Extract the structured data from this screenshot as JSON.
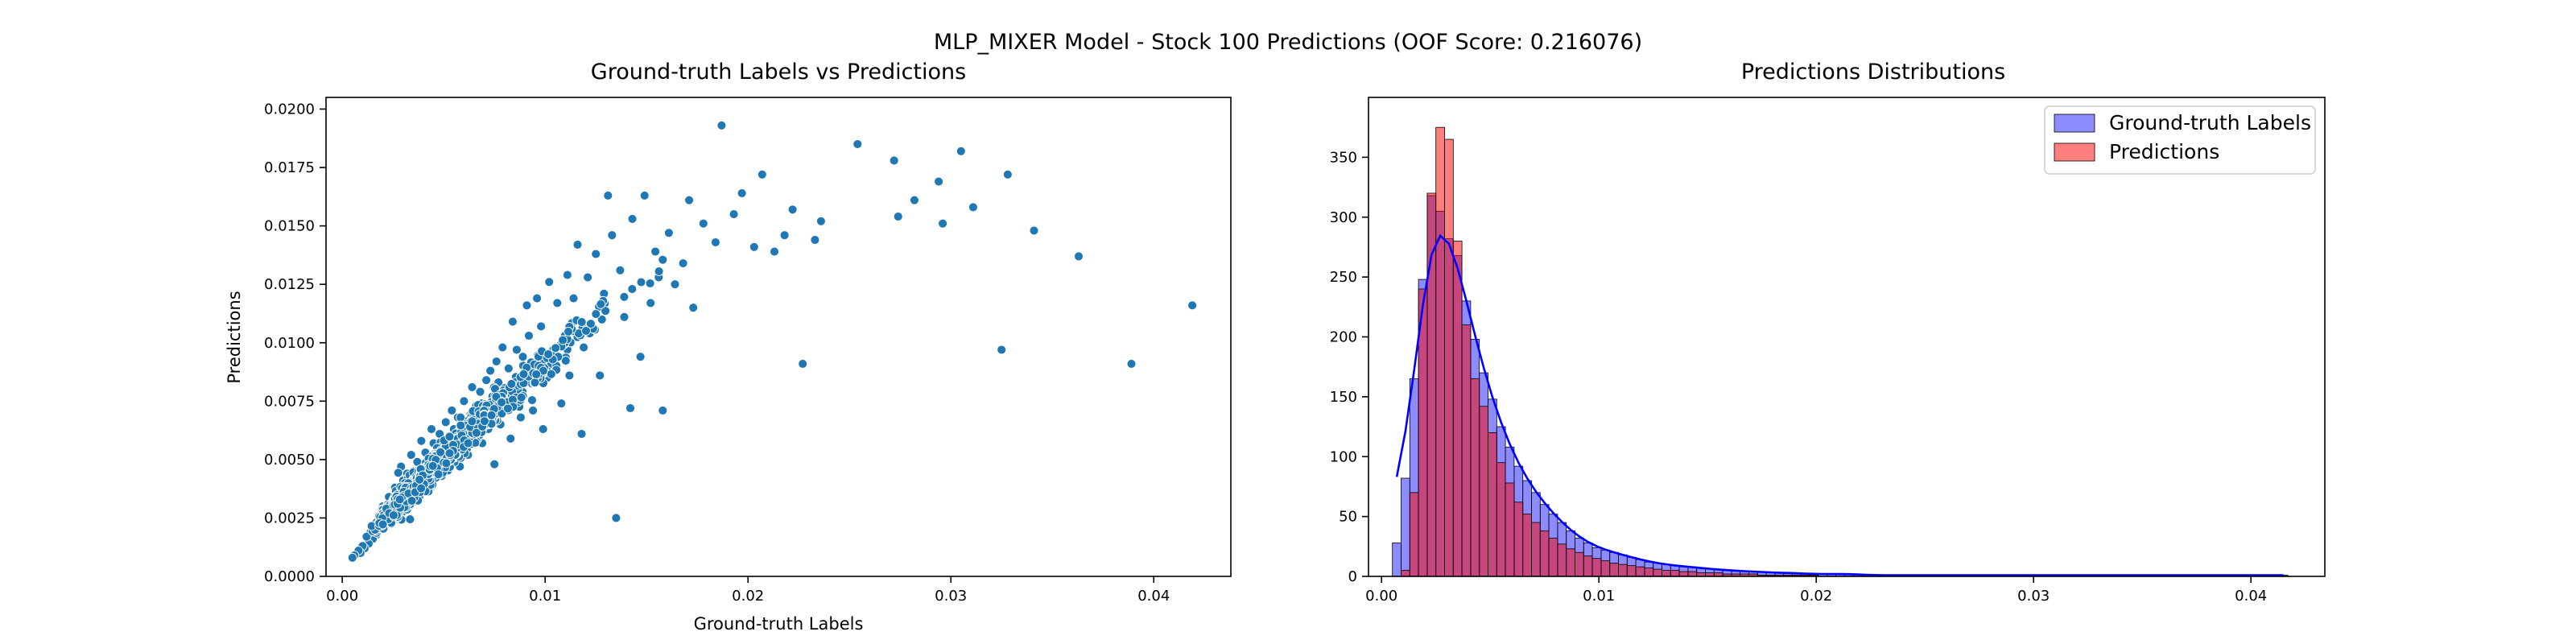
{
  "figure": {
    "suptitle": "MLP_MIXER Model - Stock 100 Predictions (OOF Score: 0.216076)"
  },
  "colors": {
    "scatter_face": "#1f77b4",
    "scatter_edge": "#ffffff",
    "truth_hist": "#0000ff",
    "pred_hist": "#ff0000",
    "kde_line": "#0000ff"
  },
  "chart_data": [
    {
      "type": "scatter",
      "title": "Ground-truth Labels vs Predictions",
      "xlabel": "Ground-truth Labels",
      "ylabel": "Predictions",
      "xlim": [
        -0.0008,
        0.0438
      ],
      "ylim": [
        0.0,
        0.0205
      ],
      "xticks": [
        0.0,
        0.01,
        0.02,
        0.03,
        0.04
      ],
      "xtick_labels": [
        "0.00",
        "0.01",
        "0.02",
        "0.03",
        "0.04"
      ],
      "yticks": [
        0.0,
        0.0025,
        0.005,
        0.0075,
        0.01,
        0.0125,
        0.015,
        0.0175,
        0.02
      ],
      "ytick_labels": [
        "0.0000",
        "0.0025",
        "0.0050",
        "0.0075",
        "0.0100",
        "0.0125",
        "0.0150",
        "0.0175",
        "0.0200"
      ],
      "grid": false,
      "points": [
        [
          0.0419,
          0.0116
        ],
        [
          0.0389,
          0.0091
        ],
        [
          0.0363,
          0.0137
        ],
        [
          0.0341,
          0.0148
        ],
        [
          0.0328,
          0.0172
        ],
        [
          0.0325,
          0.0097
        ],
        [
          0.0311,
          0.0158
        ],
        [
          0.0305,
          0.0182
        ],
        [
          0.0296,
          0.0151
        ],
        [
          0.0294,
          0.0169
        ],
        [
          0.0282,
          0.0161
        ],
        [
          0.0274,
          0.0154
        ],
        [
          0.0272,
          0.0178
        ],
        [
          0.0254,
          0.0185
        ],
        [
          0.0236,
          0.0152
        ],
        [
          0.0233,
          0.0144
        ],
        [
          0.0227,
          0.0091
        ],
        [
          0.0222,
          0.0157
        ],
        [
          0.0218,
          0.0146
        ],
        [
          0.0213,
          0.0139
        ],
        [
          0.0207,
          0.0172
        ],
        [
          0.0203,
          0.0141
        ],
        [
          0.0197,
          0.0164
        ],
        [
          0.0193,
          0.0155
        ],
        [
          0.0187,
          0.0193
        ],
        [
          0.0184,
          0.0143
        ],
        [
          0.0178,
          0.0151
        ],
        [
          0.0173,
          0.0115
        ],
        [
          0.0171,
          0.0161
        ],
        [
          0.0168,
          0.0134
        ],
        [
          0.0164,
          0.0125
        ],
        [
          0.0161,
          0.0147
        ],
        [
          0.0158,
          0.0071
        ],
        [
          0.0156,
          0.0128
        ],
        [
          0.0152,
          0.0117
        ],
        [
          0.0149,
          0.0163
        ],
        [
          0.0147,
          0.0094
        ],
        [
          0.0143,
          0.0153
        ],
        [
          0.0142,
          0.0072
        ],
        [
          0.0139,
          0.0111
        ],
        [
          0.0137,
          0.0131
        ],
        [
          0.0135,
          0.0025
        ],
        [
          0.0133,
          0.0146
        ],
        [
          0.0131,
          0.0163
        ],
        [
          0.0129,
          0.0121
        ],
        [
          0.0127,
          0.0086
        ],
        [
          0.0125,
          0.0138
        ],
        [
          0.0122,
          0.0104
        ],
        [
          0.0121,
          0.0128
        ],
        [
          0.0119,
          0.0098
        ],
        [
          0.0118,
          0.0061
        ],
        [
          0.0116,
          0.0142
        ],
        [
          0.0114,
          0.0119
        ],
        [
          0.0112,
          0.0086
        ],
        [
          0.0111,
          0.0129
        ],
        [
          0.0109,
          0.0102
        ],
        [
          0.0108,
          0.0074
        ],
        [
          0.0106,
          0.0117
        ],
        [
          0.0104,
          0.0097
        ],
        [
          0.0102,
          0.0126
        ],
        [
          0.0101,
          0.0085
        ],
        [
          0.0099,
          0.0063
        ],
        [
          0.0098,
          0.0107
        ],
        [
          0.0096,
          0.0119
        ],
        [
          0.0095,
          0.0087
        ],
        [
          0.0094,
          0.0071
        ],
        [
          0.0092,
          0.0103
        ],
        [
          0.0091,
          0.0116
        ],
        [
          0.0089,
          0.0094
        ],
        [
          0.0088,
          0.0068
        ],
        [
          0.0087,
          0.0081
        ],
        [
          0.0086,
          0.0097
        ],
        [
          0.0084,
          0.0109
        ],
        [
          0.0083,
          0.0059
        ],
        [
          0.0082,
          0.0089
        ],
        [
          0.0081,
          0.0075
        ],
        [
          0.0079,
          0.0098
        ],
        [
          0.0078,
          0.0065
        ],
        [
          0.0077,
          0.0083
        ],
        [
          0.0076,
          0.0092
        ],
        [
          0.0075,
          0.0048
        ],
        [
          0.0074,
          0.0077
        ],
        [
          0.0073,
          0.0088
        ],
        [
          0.0072,
          0.0063
        ],
        [
          0.0071,
          0.0084
        ],
        [
          0.007,
          0.0071
        ],
        [
          0.0069,
          0.0057
        ],
        [
          0.0068,
          0.0079
        ],
        [
          0.0067,
          0.0066
        ],
        [
          0.0066,
          0.0073
        ],
        [
          0.0065,
          0.0058
        ],
        [
          0.0064,
          0.0081
        ],
        [
          0.0063,
          0.0069
        ],
        [
          0.0062,
          0.0052
        ],
        [
          0.0061,
          0.0064
        ],
        [
          0.006,
          0.0075
        ],
        [
          0.0059,
          0.0061
        ],
        [
          0.0058,
          0.0047
        ],
        [
          0.0057,
          0.0068
        ],
        [
          0.0056,
          0.0055
        ],
        [
          0.0055,
          0.0063
        ],
        [
          0.0054,
          0.0071
        ],
        [
          0.0053,
          0.0049
        ],
        [
          0.0052,
          0.0058
        ],
        [
          0.0051,
          0.0066
        ],
        [
          0.005,
          0.0052
        ],
        [
          0.0049,
          0.0043
        ],
        [
          0.0048,
          0.0061
        ],
        [
          0.0047,
          0.0054
        ],
        [
          0.0046,
          0.0047
        ],
        [
          0.0045,
          0.0057
        ],
        [
          0.0044,
          0.0063
        ],
        [
          0.0043,
          0.0049
        ],
        [
          0.0042,
          0.0041
        ],
        [
          0.0041,
          0.0053
        ],
        [
          0.004,
          0.0046
        ],
        [
          0.0039,
          0.0058
        ],
        [
          0.0038,
          0.0042
        ],
        [
          0.0037,
          0.0049
        ],
        [
          0.0036,
          0.0036
        ],
        [
          0.0035,
          0.0045
        ],
        [
          0.0034,
          0.0052
        ],
        [
          0.0033,
          0.0039
        ],
        [
          0.0032,
          0.0044
        ],
        [
          0.0031,
          0.0033
        ],
        [
          0.003,
          0.0041
        ],
        [
          0.0029,
          0.0047
        ],
        [
          0.0028,
          0.0035
        ],
        [
          0.0027,
          0.0029
        ],
        [
          0.0026,
          0.0038
        ],
        [
          0.0025,
          0.0031
        ],
        [
          0.0024,
          0.0026
        ],
        [
          0.0023,
          0.0034
        ],
        [
          0.0022,
          0.0028
        ],
        [
          0.0021,
          0.0023
        ],
        [
          0.002,
          0.003
        ],
        [
          0.0019,
          0.0021
        ],
        [
          0.0018,
          0.0025
        ],
        [
          0.0017,
          0.0018
        ],
        [
          0.0016,
          0.0022
        ],
        [
          0.0015,
          0.0016
        ],
        [
          0.0014,
          0.0019
        ],
        [
          0.0013,
          0.0014
        ],
        [
          0.0012,
          0.0017
        ],
        [
          0.0011,
          0.0012
        ],
        [
          0.001,
          0.0013
        ],
        [
          0.0009,
          0.001
        ],
        [
          0.0008,
          0.0011
        ],
        [
          0.0006,
          0.0009
        ],
        [
          0.0005,
          0.0008
        ]
      ]
    },
    {
      "type": "histogram",
      "title": "Predictions Distributions",
      "xlabel": "",
      "ylabel": "",
      "xlim": [
        -0.0006,
        0.0434
      ],
      "ylim": [
        0,
        400
      ],
      "xticks": [
        0.0,
        0.01,
        0.02,
        0.03,
        0.04
      ],
      "xtick_labels": [
        "0.00",
        "0.01",
        "0.02",
        "0.03",
        "0.04"
      ],
      "yticks": [
        0,
        50,
        100,
        150,
        200,
        250,
        300,
        350
      ],
      "ytick_labels": [
        "0",
        "50",
        "100",
        "150",
        "200",
        "250",
        "300",
        "350"
      ],
      "grid": false,
      "legend_position": "top-right",
      "bin_start": 0.0005,
      "bin_width": 0.0004,
      "series": [
        {
          "name": "Ground-truth Labels",
          "color": "#0000ff",
          "kde": true,
          "values": [
            28,
            82,
            165,
            248,
            318,
            305,
            282,
            268,
            230,
            198,
            170,
            148,
            125,
            108,
            92,
            80,
            70,
            60,
            52,
            45,
            38,
            32,
            28,
            24,
            22,
            20,
            18,
            16,
            14,
            12,
            11,
            10,
            9,
            8,
            8,
            7,
            6,
            6,
            5,
            5,
            4,
            4,
            4,
            3,
            3,
            3,
            3,
            2,
            2,
            2,
            2,
            2,
            2,
            2,
            1,
            1,
            1,
            1,
            1,
            1,
            1,
            1,
            1,
            1,
            1,
            1,
            1,
            1,
            1,
            1,
            1,
            1,
            1,
            1,
            1,
            1,
            1,
            1,
            1,
            1,
            1,
            1,
            1,
            1,
            1,
            1,
            1,
            1,
            1,
            1,
            1,
            1,
            1,
            1,
            1,
            1,
            1,
            1,
            1,
            1,
            1,
            1,
            1
          ]
        },
        {
          "name": "Predictions",
          "color": "#ff0000",
          "kde": false,
          "values": [
            0,
            5,
            70,
            240,
            320,
            375,
            365,
            280,
            210,
            165,
            142,
            120,
            95,
            78,
            62,
            52,
            45,
            38,
            32,
            27,
            23,
            20,
            17,
            15,
            13,
            11,
            10,
            9,
            8,
            7,
            6,
            5,
            5,
            4,
            4,
            3,
            3,
            3,
            2,
            2,
            2,
            2,
            1,
            1,
            1,
            1,
            1,
            1,
            1,
            0,
            0,
            0,
            0,
            0,
            0,
            0,
            0,
            0,
            0,
            0,
            0,
            0,
            0,
            0,
            0,
            0,
            0,
            0,
            0,
            0,
            0,
            0,
            0,
            0,
            0,
            0,
            0,
            0,
            0,
            0,
            0,
            0,
            0,
            0,
            0,
            0,
            0,
            0,
            0,
            0,
            0,
            0,
            0,
            0,
            0,
            0,
            0,
            0,
            0,
            0,
            0,
            0,
            0
          ]
        }
      ]
    }
  ]
}
